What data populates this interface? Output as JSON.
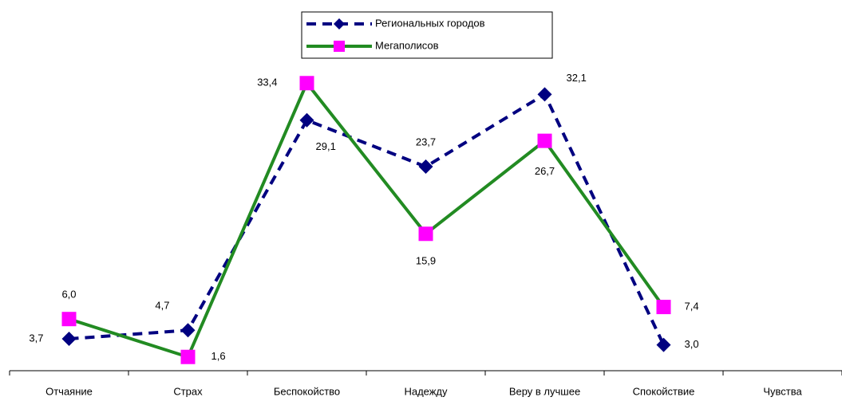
{
  "chart_data": {
    "type": "line",
    "categories": [
      "Отчаяние",
      "Страх",
      "Беспокойство",
      "Надежду",
      "Веру в лучшее",
      "Спокойствие",
      "Чувства"
    ],
    "series": [
      {
        "name": "Региональных городов",
        "color": "#000080",
        "marker": "diamond",
        "dash": true,
        "values": [
          3.7,
          4.7,
          29.1,
          23.7,
          32.1,
          3.0,
          null
        ],
        "value_labels": [
          "3,7",
          "4,7",
          "29,1",
          "23,7",
          "32,1",
          "3,0",
          null
        ]
      },
      {
        "name": "Мегаполисов",
        "color": "#228b22",
        "marker_color": "#ff00ff",
        "marker": "square",
        "dash": false,
        "values": [
          6.0,
          1.6,
          33.4,
          15.9,
          26.7,
          7.4,
          null
        ],
        "value_labels": [
          "6,0",
          "1,6",
          "33,4",
          "15,9",
          "26,7",
          "7,4",
          null
        ]
      }
    ]
  }
}
